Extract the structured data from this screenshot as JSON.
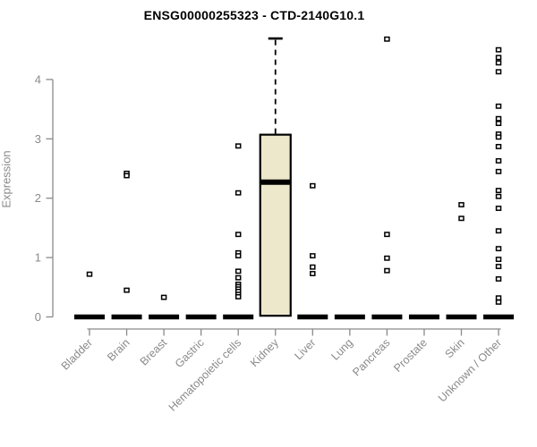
{
  "chart_data": {
    "type": "boxplot",
    "title": "ENSG00000255323 - CTD-2140G10.1",
    "ylabel": "Expression",
    "xlabel": "",
    "y_ticks": [
      0,
      1,
      2,
      3,
      4
    ],
    "ylim": [
      0,
      4.75
    ],
    "grid": false,
    "legend": false,
    "categories": [
      "Bladder",
      "Brain",
      "Breast",
      "Gastric",
      "Hematopoietic cells",
      "Kidney",
      "Liver",
      "Lung",
      "Pancreas",
      "Prostate",
      "Skin",
      "Unknown / Other"
    ],
    "series": [
      {
        "name": "Bladder",
        "q1": 0,
        "median": 0,
        "q3": 0,
        "whisker_low": 0,
        "whisker_high": 0,
        "outliers": [
          0.72
        ]
      },
      {
        "name": "Brain",
        "q1": 0,
        "median": 0,
        "q3": 0,
        "whisker_low": 0,
        "whisker_high": 0,
        "outliers": [
          2.42,
          2.38,
          0.45
        ]
      },
      {
        "name": "Breast",
        "q1": 0,
        "median": 0,
        "q3": 0,
        "whisker_low": 0,
        "whisker_high": 0,
        "outliers": [
          0.33
        ]
      },
      {
        "name": "Gastric",
        "q1": 0,
        "median": 0,
        "q3": 0,
        "whisker_low": 0,
        "whisker_high": 0,
        "outliers": []
      },
      {
        "name": "Hematopoietic cells",
        "q1": 0,
        "median": 0,
        "q3": 0,
        "whisker_low": 0,
        "whisker_high": 0,
        "outliers": [
          2.88,
          2.09,
          1.39,
          1.08,
          1.03,
          0.77,
          0.66,
          0.55,
          0.51,
          0.47,
          0.43,
          0.38,
          0.34
        ]
      },
      {
        "name": "Kidney",
        "q1": 0.02,
        "median": 2.27,
        "q3": 3.07,
        "whisker_low": 0.02,
        "whisker_high": 4.69,
        "outliers": []
      },
      {
        "name": "Liver",
        "q1": 0,
        "median": 0,
        "q3": 0,
        "whisker_low": 0,
        "whisker_high": 0,
        "outliers": [
          2.21,
          1.03,
          0.84,
          0.73
        ]
      },
      {
        "name": "Lung",
        "q1": 0,
        "median": 0,
        "q3": 0,
        "whisker_low": 0,
        "whisker_high": 0,
        "outliers": []
      },
      {
        "name": "Pancreas",
        "q1": 0,
        "median": 0,
        "q3": 0,
        "whisker_low": 0,
        "whisker_high": 0,
        "outliers": [
          4.68,
          1.39,
          0.99,
          0.78
        ]
      },
      {
        "name": "Prostate",
        "q1": 0,
        "median": 0,
        "q3": 0,
        "whisker_low": 0,
        "whisker_high": 0,
        "outliers": []
      },
      {
        "name": "Skin",
        "q1": 0,
        "median": 0,
        "q3": 0,
        "whisker_low": 0,
        "whisker_high": 0,
        "outliers": [
          1.89,
          1.66
        ]
      },
      {
        "name": "Unknown / Other",
        "q1": 0,
        "median": 0,
        "q3": 0,
        "whisker_low": 0,
        "whisker_high": 0,
        "outliers": [
          4.5,
          4.37,
          4.28,
          4.13,
          3.55,
          3.34,
          3.26,
          3.08,
          3.03,
          2.87,
          2.63,
          2.45,
          2.13,
          2.03,
          1.83,
          1.45,
          1.15,
          0.97,
          0.85,
          0.64,
          0.32,
          0.25
        ]
      }
    ],
    "style": {
      "box_fill": "#EDE8CC",
      "box_stroke": "#000000",
      "median_color": "#000000",
      "outlier_shape": "open-square",
      "outlier_stroke": "#000000",
      "outlier_fill": "#ffffff",
      "axis_color": "#8a8a8a",
      "tick_label_color": "#8a8a8a",
      "title_color": "#000000",
      "background": "#ffffff"
    }
  }
}
